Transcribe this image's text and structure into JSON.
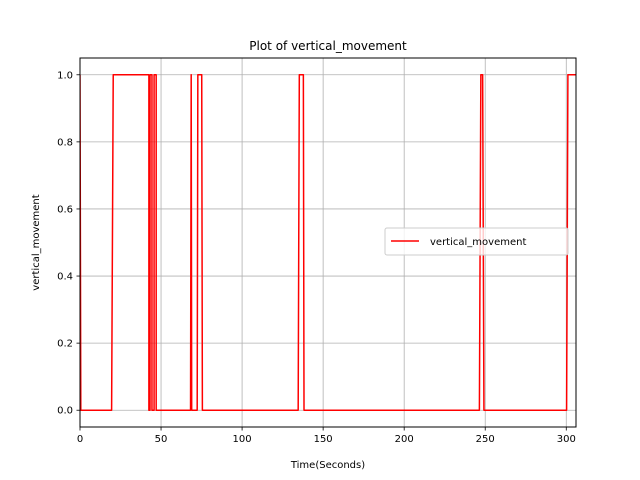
{
  "chart_data": {
    "type": "line",
    "title": "Plot of vertical_movement",
    "xlabel": "Time(Seconds)",
    "ylabel": "vertical_movement",
    "xlim": [
      0,
      306
    ],
    "ylim": [
      -0.05,
      1.05
    ],
    "xticks": [
      0,
      50,
      100,
      150,
      200,
      250,
      300
    ],
    "xtick_labels": [
      "0",
      "50",
      "100",
      "150",
      "200",
      "250",
      "300"
    ],
    "yticks": [
      0.0,
      0.2,
      0.4,
      0.6,
      0.8,
      1.0
    ],
    "ytick_labels": [
      "0.0",
      "0.2",
      "0.4",
      "0.6",
      "0.8",
      "1.0"
    ],
    "grid": true,
    "legend_position": "center-right",
    "series": [
      {
        "name": "vertical_movement",
        "color": "#ff0000",
        "x": [
          0,
          0.5,
          0.5,
          19.5,
          20.5,
          42.5,
          42.5,
          43.2,
          43.2,
          44.4,
          44.4,
          45.7,
          45.7,
          47.0,
          47.0,
          68.2,
          68.6,
          68.9,
          69.2,
          72.3,
          72.7,
          75.1,
          75.5,
          77.0,
          77.0,
          134.6,
          135.3,
          136.2,
          137.8,
          138.2,
          139.0,
          246.4,
          247.3,
          248.4,
          249.2,
          250.0,
          300.2,
          301.0,
          306
        ],
        "y": [
          1,
          0,
          0,
          0,
          1,
          1,
          0,
          0,
          1,
          1,
          0,
          0,
          1,
          1,
          0,
          0,
          1,
          0,
          0,
          0,
          1,
          1,
          0,
          0,
          0,
          0,
          1,
          1,
          1,
          0,
          0,
          0,
          1,
          1,
          0,
          0,
          0,
          1,
          1
        ]
      }
    ]
  }
}
